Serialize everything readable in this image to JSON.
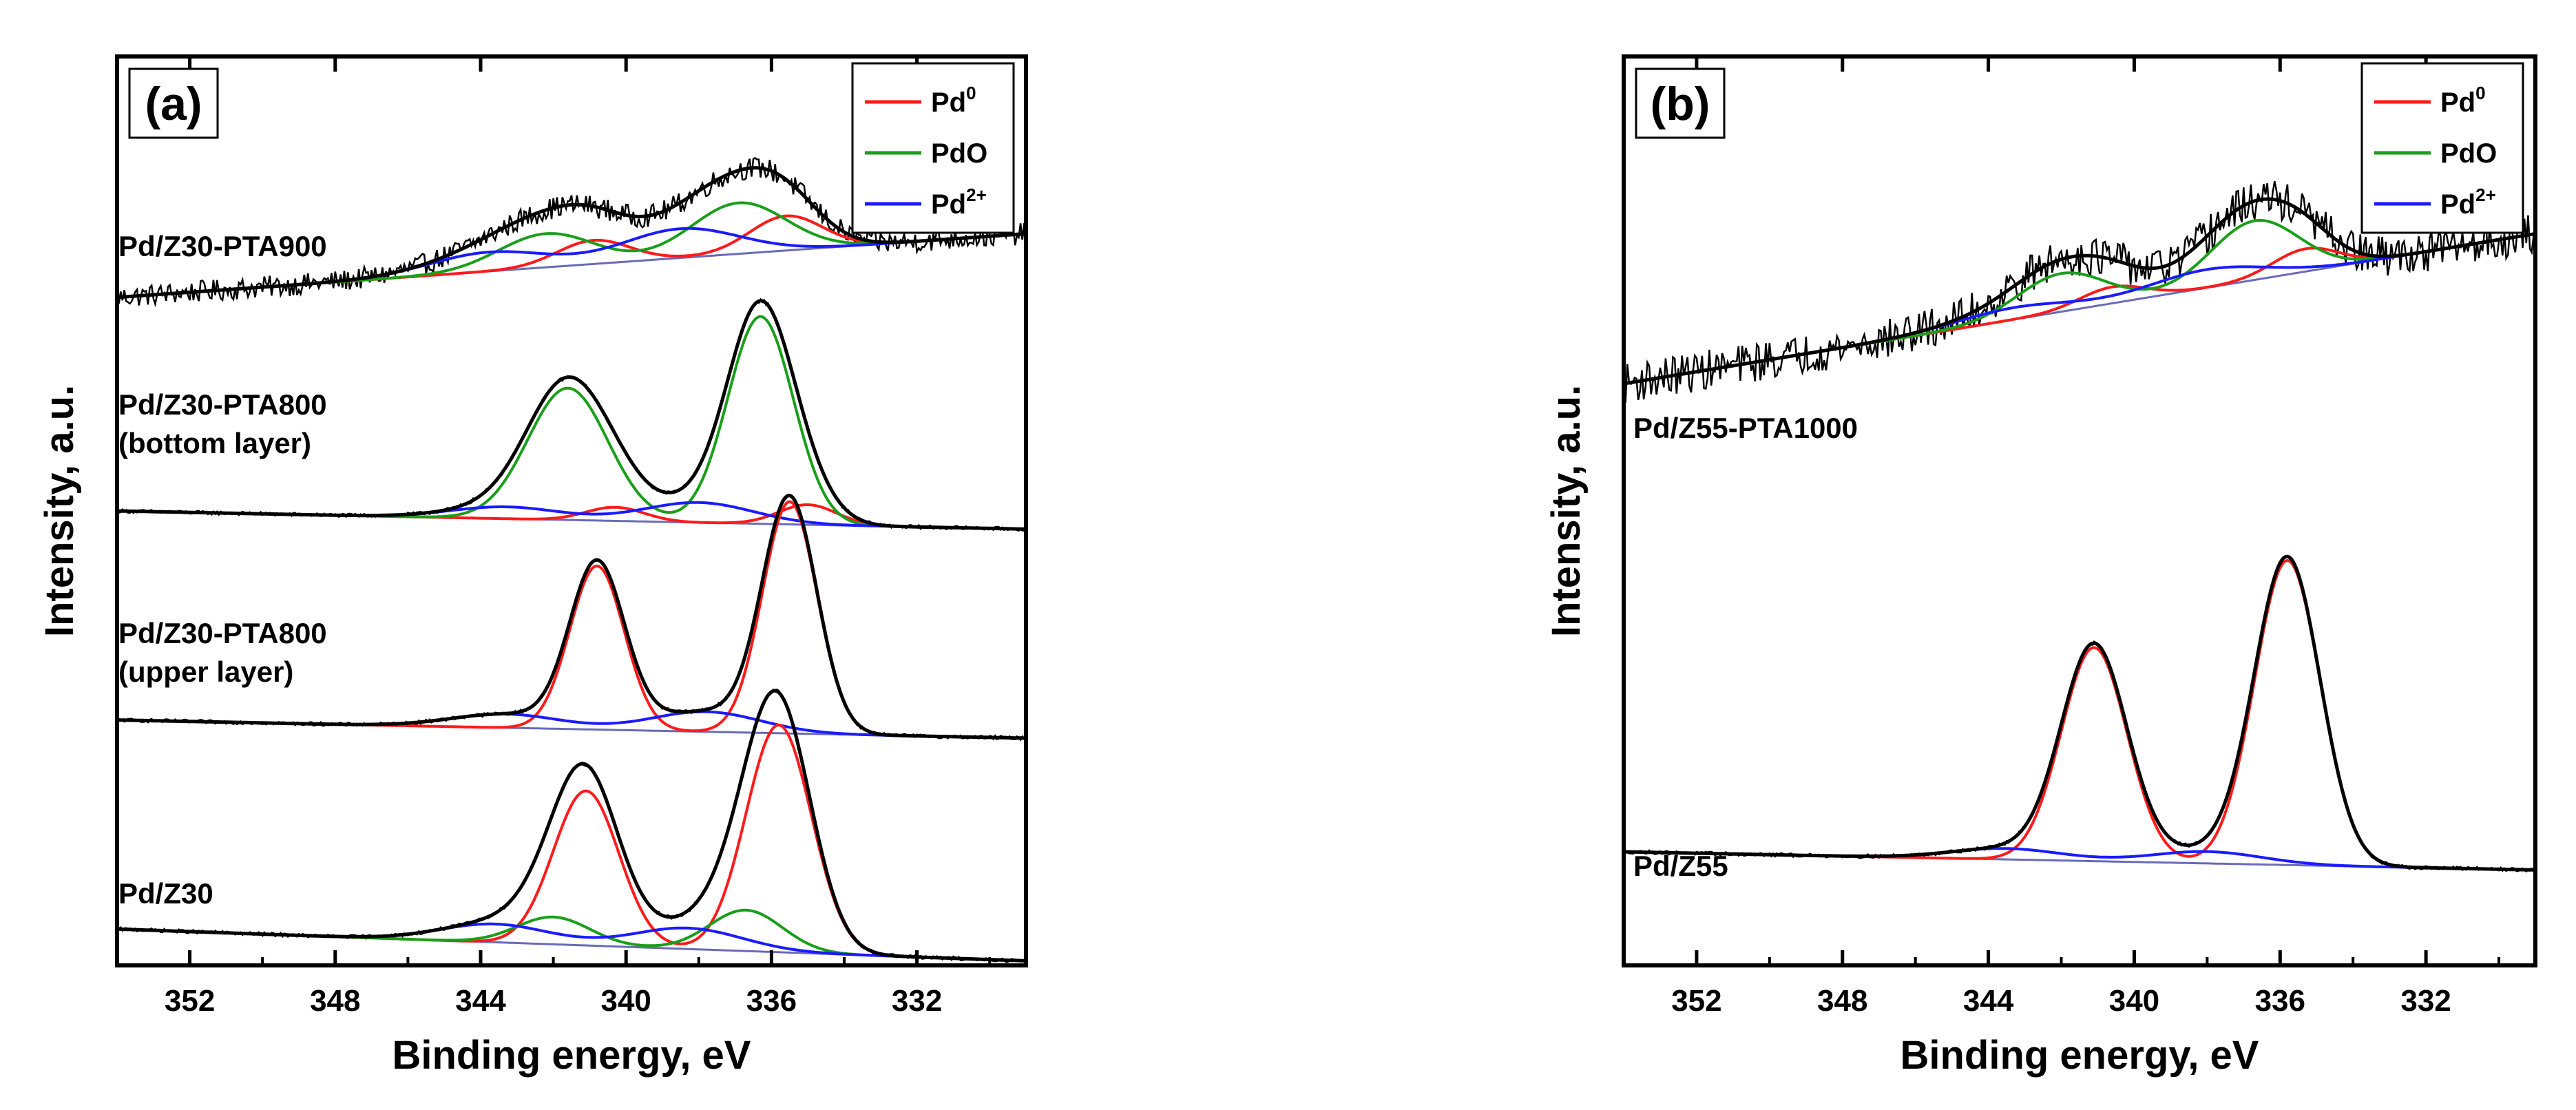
{
  "chart_data": [
    {
      "type": "line",
      "panel_label": "(a)",
      "xlabel": "Binding energy, eV",
      "ylabel": "Intensity, a.u.",
      "xlim": [
        354,
        329
      ],
      "x_reversed": true,
      "ylim": [
        0,
        100
      ],
      "y_ticks_shown": false,
      "x_ticks": [
        352,
        348,
        344,
        340,
        336,
        332
      ],
      "tick_labels": [
        "352",
        "348",
        "344",
        "340",
        "336",
        "332"
      ],
      "legend": {
        "position": "top-right",
        "entries": [
          {
            "base": "Pd",
            "sup": "0",
            "color": "#ff1a1a"
          },
          {
            "base": "PdO",
            "sup": "",
            "color": "#1a9e1a"
          },
          {
            "base": "Pd",
            "sup": "2+",
            "color": "#1a1aff"
          }
        ]
      },
      "series": [
        {
          "name": "Pd/Z30-PTA900",
          "label_lines": [
            "Pd/Z30-PTA900"
          ],
          "label_row": 0,
          "noise": 1.2,
          "baseline": [
            {
              "x": 354,
              "y": 73.5
            },
            {
              "x": 329,
              "y": 80.5
            }
          ],
          "envelope": {
            "width": 2.0,
            "components": [
              {
                "kind": "Pd0",
                "peaks": [
                  [
                    335.6,
                    3.8,
                    1.0
                  ],
                  [
                    340.9,
                    2.6,
                    1.0
                  ]
                ]
              },
              {
                "kind": "PdO",
                "peaks": [
                  [
                    336.9,
                    5.6,
                    1.3
                  ],
                  [
                    342.2,
                    3.7,
                    1.3
                  ]
                ]
              },
              {
                "kind": "Pd2+",
                "peaks": [
                  [
                    338.5,
                    3.2,
                    1.6
                  ],
                  [
                    343.8,
                    2.1,
                    1.6
                  ]
                ]
              }
            ]
          }
        },
        {
          "name": "Pd/Z30-PTA800 (bottom layer)",
          "label_lines": [
            "Pd/Z30-PTA800",
            "(bottom layer)"
          ],
          "label_row": 1,
          "noise": 0.0,
          "baseline": [
            {
              "x": 354,
              "y": 50.0
            },
            {
              "x": 329,
              "y": 48.0
            }
          ],
          "envelope": {
            "width": 2.0,
            "components": [
              {
                "kind": "Pd0",
                "peaks": [
                  [
                    335.0,
                    2.2,
                    0.8
                  ],
                  [
                    340.3,
                    1.5,
                    0.8
                  ]
                ]
              },
              {
                "kind": "PdO",
                "peaks": [
                  [
                    336.3,
                    22.8,
                    0.9
                  ],
                  [
                    341.6,
                    14.5,
                    1.1
                  ]
                ]
              },
              {
                "kind": "Pd2+",
                "peaks": [
                  [
                    338.0,
                    2.2,
                    1.5
                  ],
                  [
                    343.3,
                    1.3,
                    1.5
                  ]
                ]
              }
            ]
          }
        },
        {
          "name": "Pd/Z30-PTA800 (upper layer)",
          "label_lines": [
            "Pd/Z30-PTA800",
            "(upper layer)"
          ],
          "label_row": 2,
          "noise": 0.0,
          "baseline": [
            {
              "x": 354,
              "y": 27.0
            },
            {
              "x": 329,
              "y": 25.0
            }
          ],
          "envelope": {
            "width": 2.0,
            "components": [
              {
                "kind": "Pd0",
                "peaks": [
                  [
                    335.5,
                    25.5,
                    0.75
                  ],
                  [
                    340.8,
                    18.0,
                    0.75
                  ]
                ]
              },
              {
                "kind": "PdO",
                "peaks": []
              },
              {
                "kind": "Pd2+",
                "peaks": [
                  [
                    337.8,
                    2.2,
                    1.5
                  ],
                  [
                    343.3,
                    1.5,
                    1.5
                  ]
                ]
              }
            ]
          }
        },
        {
          "name": "Pd/Z30",
          "label_lines": [
            "Pd/Z30"
          ],
          "label_row": 3,
          "noise": 0.0,
          "baseline": [
            {
              "x": 354,
              "y": 4.0
            },
            {
              "x": 329,
              "y": 0.5
            }
          ],
          "envelope": {
            "width": 2.0,
            "components": [
              {
                "kind": "Pd0",
                "peaks": [
                  [
                    335.8,
                    25.0,
                    0.9
                  ],
                  [
                    341.1,
                    17.0,
                    0.9
                  ]
                ]
              },
              {
                "kind": "PdO",
                "peaks": [
                  [
                    336.7,
                    4.5,
                    1.0
                  ],
                  [
                    342.0,
                    3.0,
                    1.0
                  ]
                ]
              },
              {
                "kind": "Pd2+",
                "peaks": [
                  [
                    338.3,
                    2.3,
                    1.5
                  ],
                  [
                    343.6,
                    2.0,
                    1.5
                  ]
                ]
              }
            ]
          }
        }
      ]
    },
    {
      "type": "line",
      "panel_label": "(b)",
      "xlabel": "Binding energy, eV",
      "ylabel": "Intensity, a.u.",
      "xlim": [
        354,
        329
      ],
      "x_reversed": true,
      "ylim": [
        0,
        100
      ],
      "y_ticks_shown": false,
      "x_ticks": [
        352,
        348,
        344,
        340,
        336,
        332
      ],
      "tick_labels": [
        "352",
        "348",
        "344",
        "340",
        "336",
        "332"
      ],
      "legend": {
        "position": "top-right",
        "entries": [
          {
            "base": "Pd",
            "sup": "0",
            "color": "#ff1a1a"
          },
          {
            "base": "PdO",
            "sup": "",
            "color": "#1a9e1a"
          },
          {
            "base": "Pd",
            "sup": "2+",
            "color": "#1a1aff"
          }
        ]
      },
      "series": [
        {
          "name": "Pd/Z55-PTA1000",
          "label_lines": [
            "Pd/Z55-PTA1000"
          ],
          "label_row": 0,
          "noise": 2.2,
          "baseline": [
            {
              "x": 354,
              "y": 64.0
            },
            {
              "x": 329,
              "y": 80.5
            }
          ],
          "envelope": {
            "width": 2.0,
            "components": [
              {
                "kind": "Pd0",
                "peaks": [
                  [
                    335.3,
                    2.5,
                    0.9
                  ],
                  [
                    340.6,
                    1.8,
                    0.9
                  ]
                ]
              },
              {
                "kind": "PdO",
                "peaks": [
                  [
                    336.7,
                    6.5,
                    1.2
                  ],
                  [
                    342.0,
                    4.2,
                    1.2
                  ]
                ]
              },
              {
                "kind": "Pd2+",
                "peaks": [
                  [
                    338.0,
                    2.0,
                    1.6
                  ],
                  [
                    343.3,
                    1.3,
                    1.6
                  ]
                ]
              }
            ]
          }
        },
        {
          "name": "Pd/Z55",
          "label_lines": [
            "Pd/Z55"
          ],
          "label_row": 3,
          "noise": 0.0,
          "baseline": [
            {
              "x": 354,
              "y": 12.5
            },
            {
              "x": 329,
              "y": 10.5
            }
          ],
          "envelope": {
            "width": 2.0,
            "components": [
              {
                "kind": "Pd0",
                "peaks": [
                  [
                    335.8,
                    33.5,
                    0.9
                  ],
                  [
                    341.1,
                    23.5,
                    0.9
                  ]
                ]
              },
              {
                "kind": "PdO",
                "peaks": []
              },
              {
                "kind": "Pd2+",
                "peaks": [
                  [
                    338.0,
                    1.3,
                    1.5
                  ],
                  [
                    343.5,
                    1.2,
                    1.5
                  ]
                ]
              }
            ]
          }
        }
      ]
    }
  ]
}
